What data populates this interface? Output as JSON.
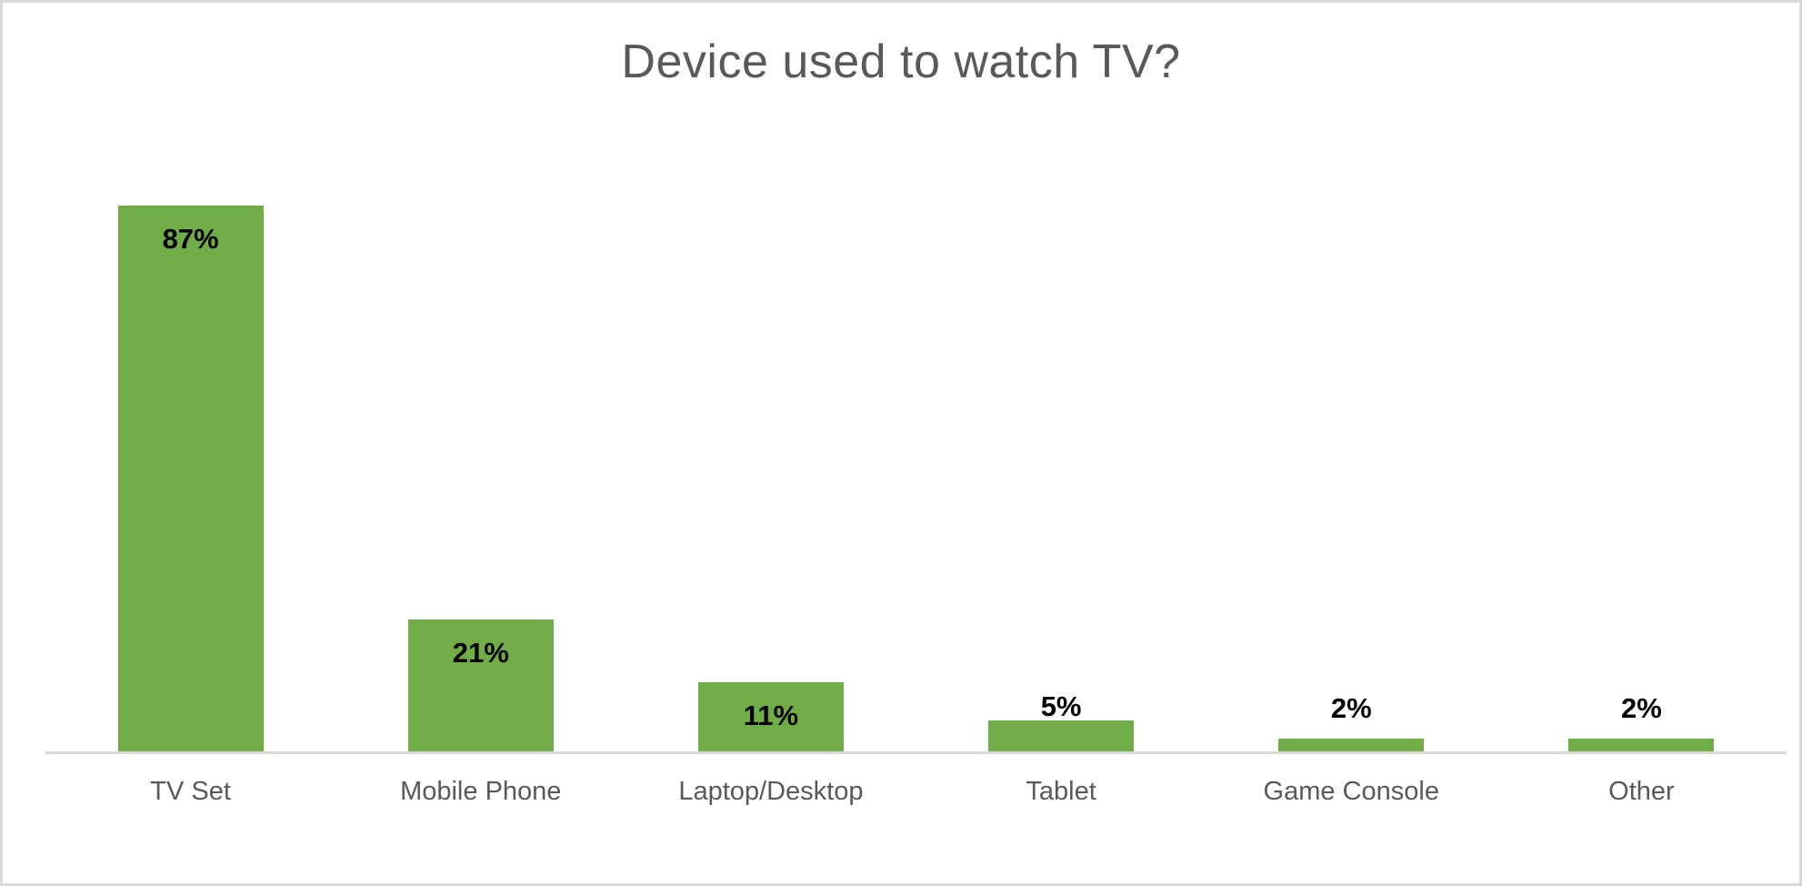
{
  "chart_data": {
    "type": "bar",
    "title": "Device used to watch TV?",
    "categories": [
      "TV Set",
      "Mobile Phone",
      "Laptop/Desktop",
      "Tablet",
      "Game Console",
      "Other"
    ],
    "values": [
      87,
      21,
      11,
      5,
      2,
      2
    ],
    "data_labels": [
      "87%",
      "21%",
      "11%",
      "5%",
      "2%",
      "2%"
    ],
    "series_name": "Device used to watch TV?",
    "xlabel": "",
    "ylabel": "",
    "ylim": [
      0,
      90
    ],
    "grid": false,
    "legend": false,
    "y_axis_visible": false,
    "data_label_position": "inside-end-or-above",
    "colors": {
      "bar": "#70AD47",
      "title_text": "#595959",
      "category_text": "#595959",
      "value_text": "#000000",
      "axis_line": "#D9D9D9",
      "canvas_border": "#D9D9D9",
      "background": "#FFFFFF"
    }
  }
}
